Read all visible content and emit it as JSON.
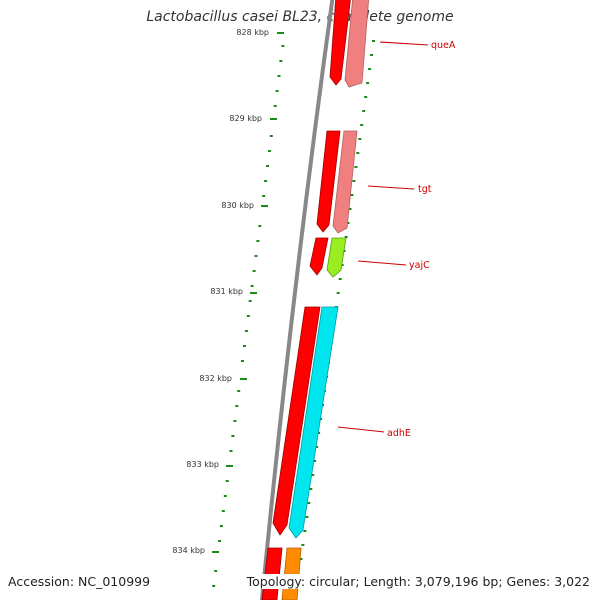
{
  "title": "Lactobacillus casei BL23, complete genome",
  "footer": {
    "accession": "Accession: NC_010999",
    "summary": "Topology: circular; Length: 3,079,196 bp; Genes: 3,022"
  },
  "ticks": [
    "828 kbp",
    "829 kbp",
    "830 kbp",
    "831 kbp",
    "832 kbp",
    "833 kbp",
    "834 kbp"
  ],
  "genes": [
    {
      "name": "queA"
    },
    {
      "name": "tgt"
    },
    {
      "name": "yajC"
    },
    {
      "name": "adhE"
    }
  ],
  "colors": {
    "backbone": "#888888",
    "gc_tick": "#1a8a1a",
    "cds": "#ff0000",
    "label": "#cc0000",
    "queA_gene": "#f08080",
    "tgt_gene": "#f08080",
    "yajC_gene": "#99ee22",
    "adhE_gene": "#00e5ee",
    "lower_gene": "#ff8c00"
  }
}
